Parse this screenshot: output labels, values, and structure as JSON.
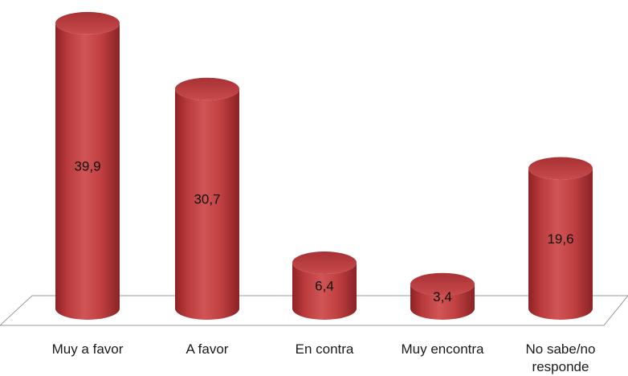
{
  "chart_data": {
    "type": "bar",
    "style": "3d-cylinder",
    "categories": [
      [
        "Muy a favor"
      ],
      [
        "A favor"
      ],
      [
        "En contra"
      ],
      [
        "Muy encontra"
      ],
      [
        "No sabe/no",
        "responde"
      ]
    ],
    "values": [
      39.9,
      30.7,
      6.4,
      3.4,
      19.6
    ],
    "value_labels": [
      "39,9",
      "30,7",
      "6,4",
      "3,4",
      "19,6"
    ],
    "title": "",
    "xlabel": "",
    "ylabel": "",
    "ylim": [
      0,
      40
    ],
    "grid": false,
    "legend": "none",
    "bar_color": "#c0393b",
    "floor_color": "#ffffff"
  }
}
